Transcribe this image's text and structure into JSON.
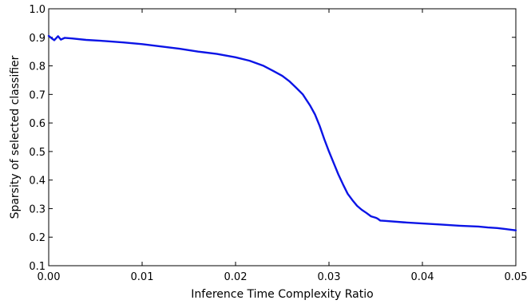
{
  "chart_data": {
    "type": "line",
    "title": "",
    "xlabel": "Inference Time Complexity Ratio",
    "ylabel": "Sparsity of selected classifier",
    "xlim": [
      0.0,
      0.05
    ],
    "ylim": [
      0.1,
      1.0
    ],
    "x_ticks": [
      0.0,
      0.01,
      0.02,
      0.03,
      0.04,
      0.05
    ],
    "x_tick_labels": [
      "0.00",
      "0.01",
      "0.02",
      "0.03",
      "0.04",
      "0.05"
    ],
    "y_ticks": [
      0.1,
      0.2,
      0.3,
      0.4,
      0.5,
      0.6,
      0.7,
      0.8,
      0.9,
      1.0
    ],
    "y_tick_labels": [
      "0.1",
      "0.2",
      "0.3",
      "0.4",
      "0.5",
      "0.6",
      "0.7",
      "0.8",
      "0.9",
      "1.0"
    ],
    "grid": false,
    "legend": "none",
    "series": [
      {
        "color": "#0b14e6",
        "x": [
          0.0,
          0.0003,
          0.0006,
          0.001,
          0.0013,
          0.0017,
          0.0025,
          0.004,
          0.006,
          0.008,
          0.01,
          0.012,
          0.014,
          0.016,
          0.018,
          0.02,
          0.0215,
          0.023,
          0.024,
          0.025,
          0.0258,
          0.0265,
          0.0272,
          0.028,
          0.0285,
          0.029,
          0.0295,
          0.03,
          0.0305,
          0.031,
          0.0315,
          0.032,
          0.0325,
          0.033,
          0.0335,
          0.034,
          0.0345,
          0.035,
          0.0352,
          0.0355,
          0.036,
          0.038,
          0.04,
          0.042,
          0.044,
          0.046,
          0.047,
          0.048,
          0.049,
          0.05
        ],
        "y": [
          0.905,
          0.897,
          0.89,
          0.904,
          0.892,
          0.898,
          0.896,
          0.891,
          0.887,
          0.882,
          0.876,
          0.868,
          0.86,
          0.85,
          0.842,
          0.83,
          0.818,
          0.8,
          0.783,
          0.765,
          0.745,
          0.723,
          0.7,
          0.66,
          0.63,
          0.59,
          0.543,
          0.5,
          0.46,
          0.42,
          0.385,
          0.352,
          0.33,
          0.31,
          0.296,
          0.285,
          0.273,
          0.268,
          0.265,
          0.258,
          0.257,
          0.252,
          0.248,
          0.244,
          0.24,
          0.237,
          0.234,
          0.232,
          0.228,
          0.224
        ]
      }
    ]
  }
}
